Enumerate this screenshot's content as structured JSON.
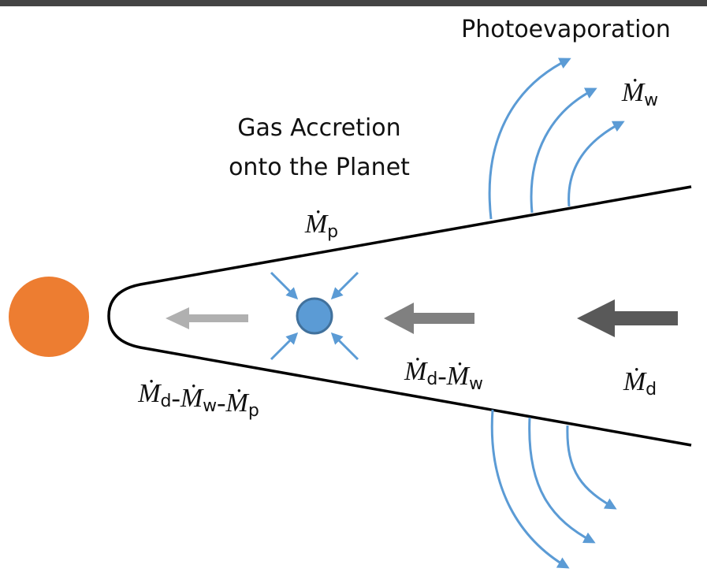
{
  "title": "Photoevaporation",
  "accretion_label": [
    "Gas Accretion",
    "onto the Planet"
  ],
  "rate_labels": [
    {
      "parts": [
        {
          "text": "Ṁ",
          "sub": "w"
        }
      ]
    },
    {
      "parts": [
        {
          "text": "Ṁ",
          "sub": "p"
        }
      ]
    },
    {
      "parts": [
        {
          "text": "Ṁ",
          "sub": "d"
        },
        {
          "text": "-"
        },
        {
          "text": "Ṁ",
          "sub": "w"
        }
      ]
    },
    {
      "parts": [
        {
          "text": "Ṁ",
          "sub": "d"
        }
      ]
    },
    {
      "parts": [
        {
          "text": "Ṁ",
          "sub": "d"
        },
        {
          "text": "-"
        },
        {
          "text": "Ṁ",
          "sub": "w"
        },
        {
          "text": "-"
        },
        {
          "text": "Ṁ",
          "sub": "p"
        }
      ]
    }
  ]
}
